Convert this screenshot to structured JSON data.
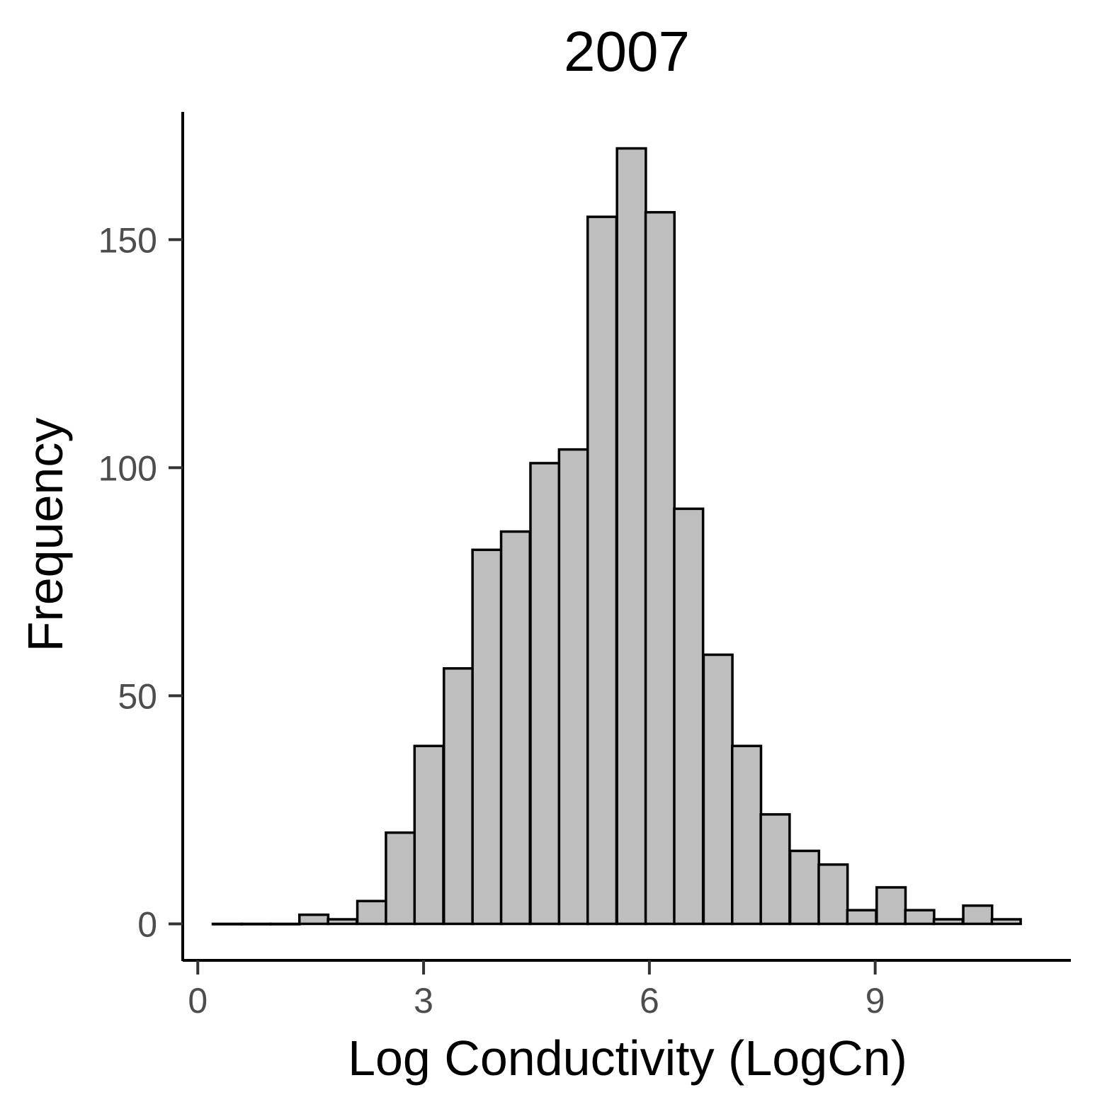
{
  "chart_data": {
    "type": "bar",
    "title": "2007",
    "xlabel": "Log Conductivity (LogCn)",
    "ylabel": "Frequency",
    "xlim": [
      -0.2,
      11.6
    ],
    "ylim": [
      -8,
      178
    ],
    "x_ticks": [
      "0",
      "3",
      "6",
      "9"
    ],
    "y_ticks": [
      "0",
      "50",
      "100",
      "150"
    ],
    "bin_width": 0.383,
    "bins": [
      {
        "x0": 0.2,
        "count": 0
      },
      {
        "x0": 0.58,
        "count": 0
      },
      {
        "x0": 0.97,
        "count": 0
      },
      {
        "x0": 1.35,
        "count": 2
      },
      {
        "x0": 1.73,
        "count": 1
      },
      {
        "x0": 2.12,
        "count": 5
      },
      {
        "x0": 2.5,
        "count": 20
      },
      {
        "x0": 2.88,
        "count": 39
      },
      {
        "x0": 3.27,
        "count": 56
      },
      {
        "x0": 3.65,
        "count": 82
      },
      {
        "x0": 4.03,
        "count": 86
      },
      {
        "x0": 4.42,
        "count": 101
      },
      {
        "x0": 4.8,
        "count": 104
      },
      {
        "x0": 5.18,
        "count": 155
      },
      {
        "x0": 5.57,
        "count": 170
      },
      {
        "x0": 5.95,
        "count": 156
      },
      {
        "x0": 6.33,
        "count": 91
      },
      {
        "x0": 6.72,
        "count": 59
      },
      {
        "x0": 7.1,
        "count": 39
      },
      {
        "x0": 7.48,
        "count": 24
      },
      {
        "x0": 7.87,
        "count": 16
      },
      {
        "x0": 8.25,
        "count": 13
      },
      {
        "x0": 8.63,
        "count": 3
      },
      {
        "x0": 9.02,
        "count": 8
      },
      {
        "x0": 9.4,
        "count": 3
      },
      {
        "x0": 9.78,
        "count": 1
      },
      {
        "x0": 10.17,
        "count": 4
      },
      {
        "x0": 10.55,
        "count": 1
      }
    ],
    "bar_fill": "#bebebe",
    "bar_stroke": "#000000",
    "grid": false,
    "legend": "none"
  }
}
